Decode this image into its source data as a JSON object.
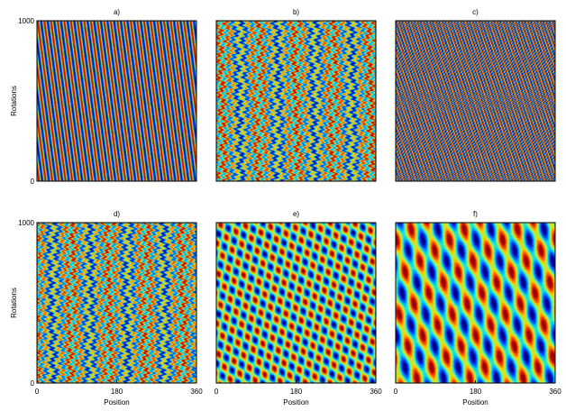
{
  "chart_data": [
    {
      "type": "heatmap",
      "title": "a)",
      "pattern": "diagonal-stripes",
      "xlabel": "",
      "ylabel": "Rotations",
      "xlim": [
        0,
        360
      ],
      "ylim": [
        0,
        1000
      ],
      "xticks": [],
      "yticks": [
        "0",
        "1000"
      ]
    },
    {
      "type": "heatmap",
      "title": "b)",
      "pattern": "near-vertical-wavy-stripes",
      "xlabel": "",
      "ylabel": "",
      "xlim": [
        0,
        360
      ],
      "ylim": [
        0,
        1000
      ],
      "xticks": [],
      "yticks": []
    },
    {
      "type": "heatmap",
      "title": "c)",
      "pattern": "fine-diagonal-stripes",
      "xlabel": "",
      "ylabel": "",
      "xlim": [
        0,
        360
      ],
      "ylim": [
        0,
        1000
      ],
      "xticks": [],
      "yticks": []
    },
    {
      "type": "heatmap",
      "title": "d)",
      "pattern": "near-vertical-wavy-stripes",
      "xlabel": "Position",
      "ylabel": "Rotations",
      "xlim": [
        0,
        360
      ],
      "ylim": [
        0,
        1000
      ],
      "xticks": [
        "0",
        "180",
        "360"
      ],
      "yticks": [
        "0",
        "1000"
      ]
    },
    {
      "type": "heatmap",
      "title": "e)",
      "pattern": "crossed-diagonal-lattice",
      "xlabel": "Position",
      "ylabel": "",
      "xlim": [
        0,
        360
      ],
      "ylim": [
        0,
        1000
      ],
      "xticks": [
        "0",
        "180",
        "360"
      ],
      "yticks": []
    },
    {
      "type": "heatmap",
      "title": "f)",
      "pattern": "crossed-diagonal-lattice-coarse",
      "xlabel": "Position",
      "ylabel": "",
      "xlim": [
        0,
        360
      ],
      "ylim": [
        0,
        1000
      ],
      "xticks": [
        "0",
        "180",
        "360"
      ],
      "yticks": []
    }
  ],
  "colormap": [
    "#00008f",
    "#0050ff",
    "#00d0ff",
    "#7dff7a",
    "#ffd200",
    "#ff5000",
    "#a00000"
  ]
}
